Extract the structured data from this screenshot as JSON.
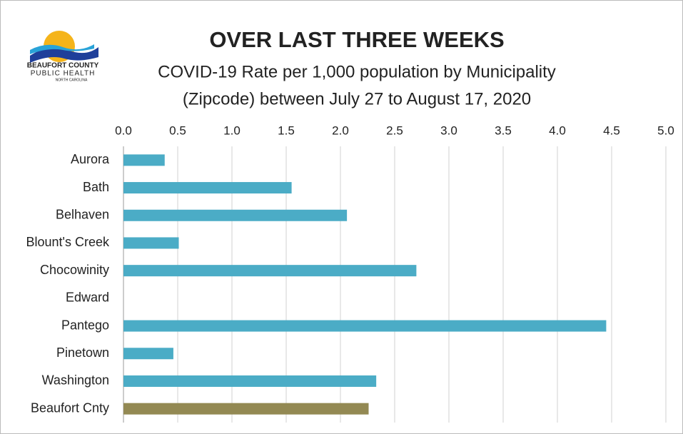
{
  "chart_data": {
    "type": "barh",
    "title": "OVER LAST THREE WEEKS",
    "subtitle": [
      "COVID-19 Rate per 1,000 population by Municipality",
      "(Zipcode) between July 27 to August 17, 2020"
    ],
    "logo": [
      "BEAUFORT COUNTY",
      "PUBLIC HEALTH",
      "NORTH CAROLINA"
    ],
    "categories": [
      "Aurora",
      "Bath",
      "Belhaven",
      "Blount's Creek",
      "Chocowinity",
      "Edward",
      "Pantego",
      "Pinetown",
      "Washington",
      "Beaufort Cnty"
    ],
    "values": [
      0.38,
      1.55,
      2.06,
      0.51,
      2.7,
      0,
      4.45,
      0.46,
      2.33,
      2.26
    ],
    "colors": [
      "#4bacc6",
      "#4bacc6",
      "#4bacc6",
      "#4bacc6",
      "#4bacc6",
      "#4bacc6",
      "#4bacc6",
      "#4bacc6",
      "#4bacc6",
      "#938953"
    ],
    "xlim": [
      0,
      5
    ],
    "xticks": [
      {
        "value": 0,
        "label": "0.0"
      },
      0.5,
      {
        "value": 1,
        "label": "1.0"
      },
      1.5,
      {
        "value": 2,
        "label": "2.0"
      },
      2.5,
      {
        "value": 3,
        "label": "3.0"
      },
      3.5,
      {
        "value": 4,
        "label": "4.0"
      },
      4.5,
      {
        "value": 5,
        "label": "5.0"
      }
    ],
    "grid": true
  }
}
